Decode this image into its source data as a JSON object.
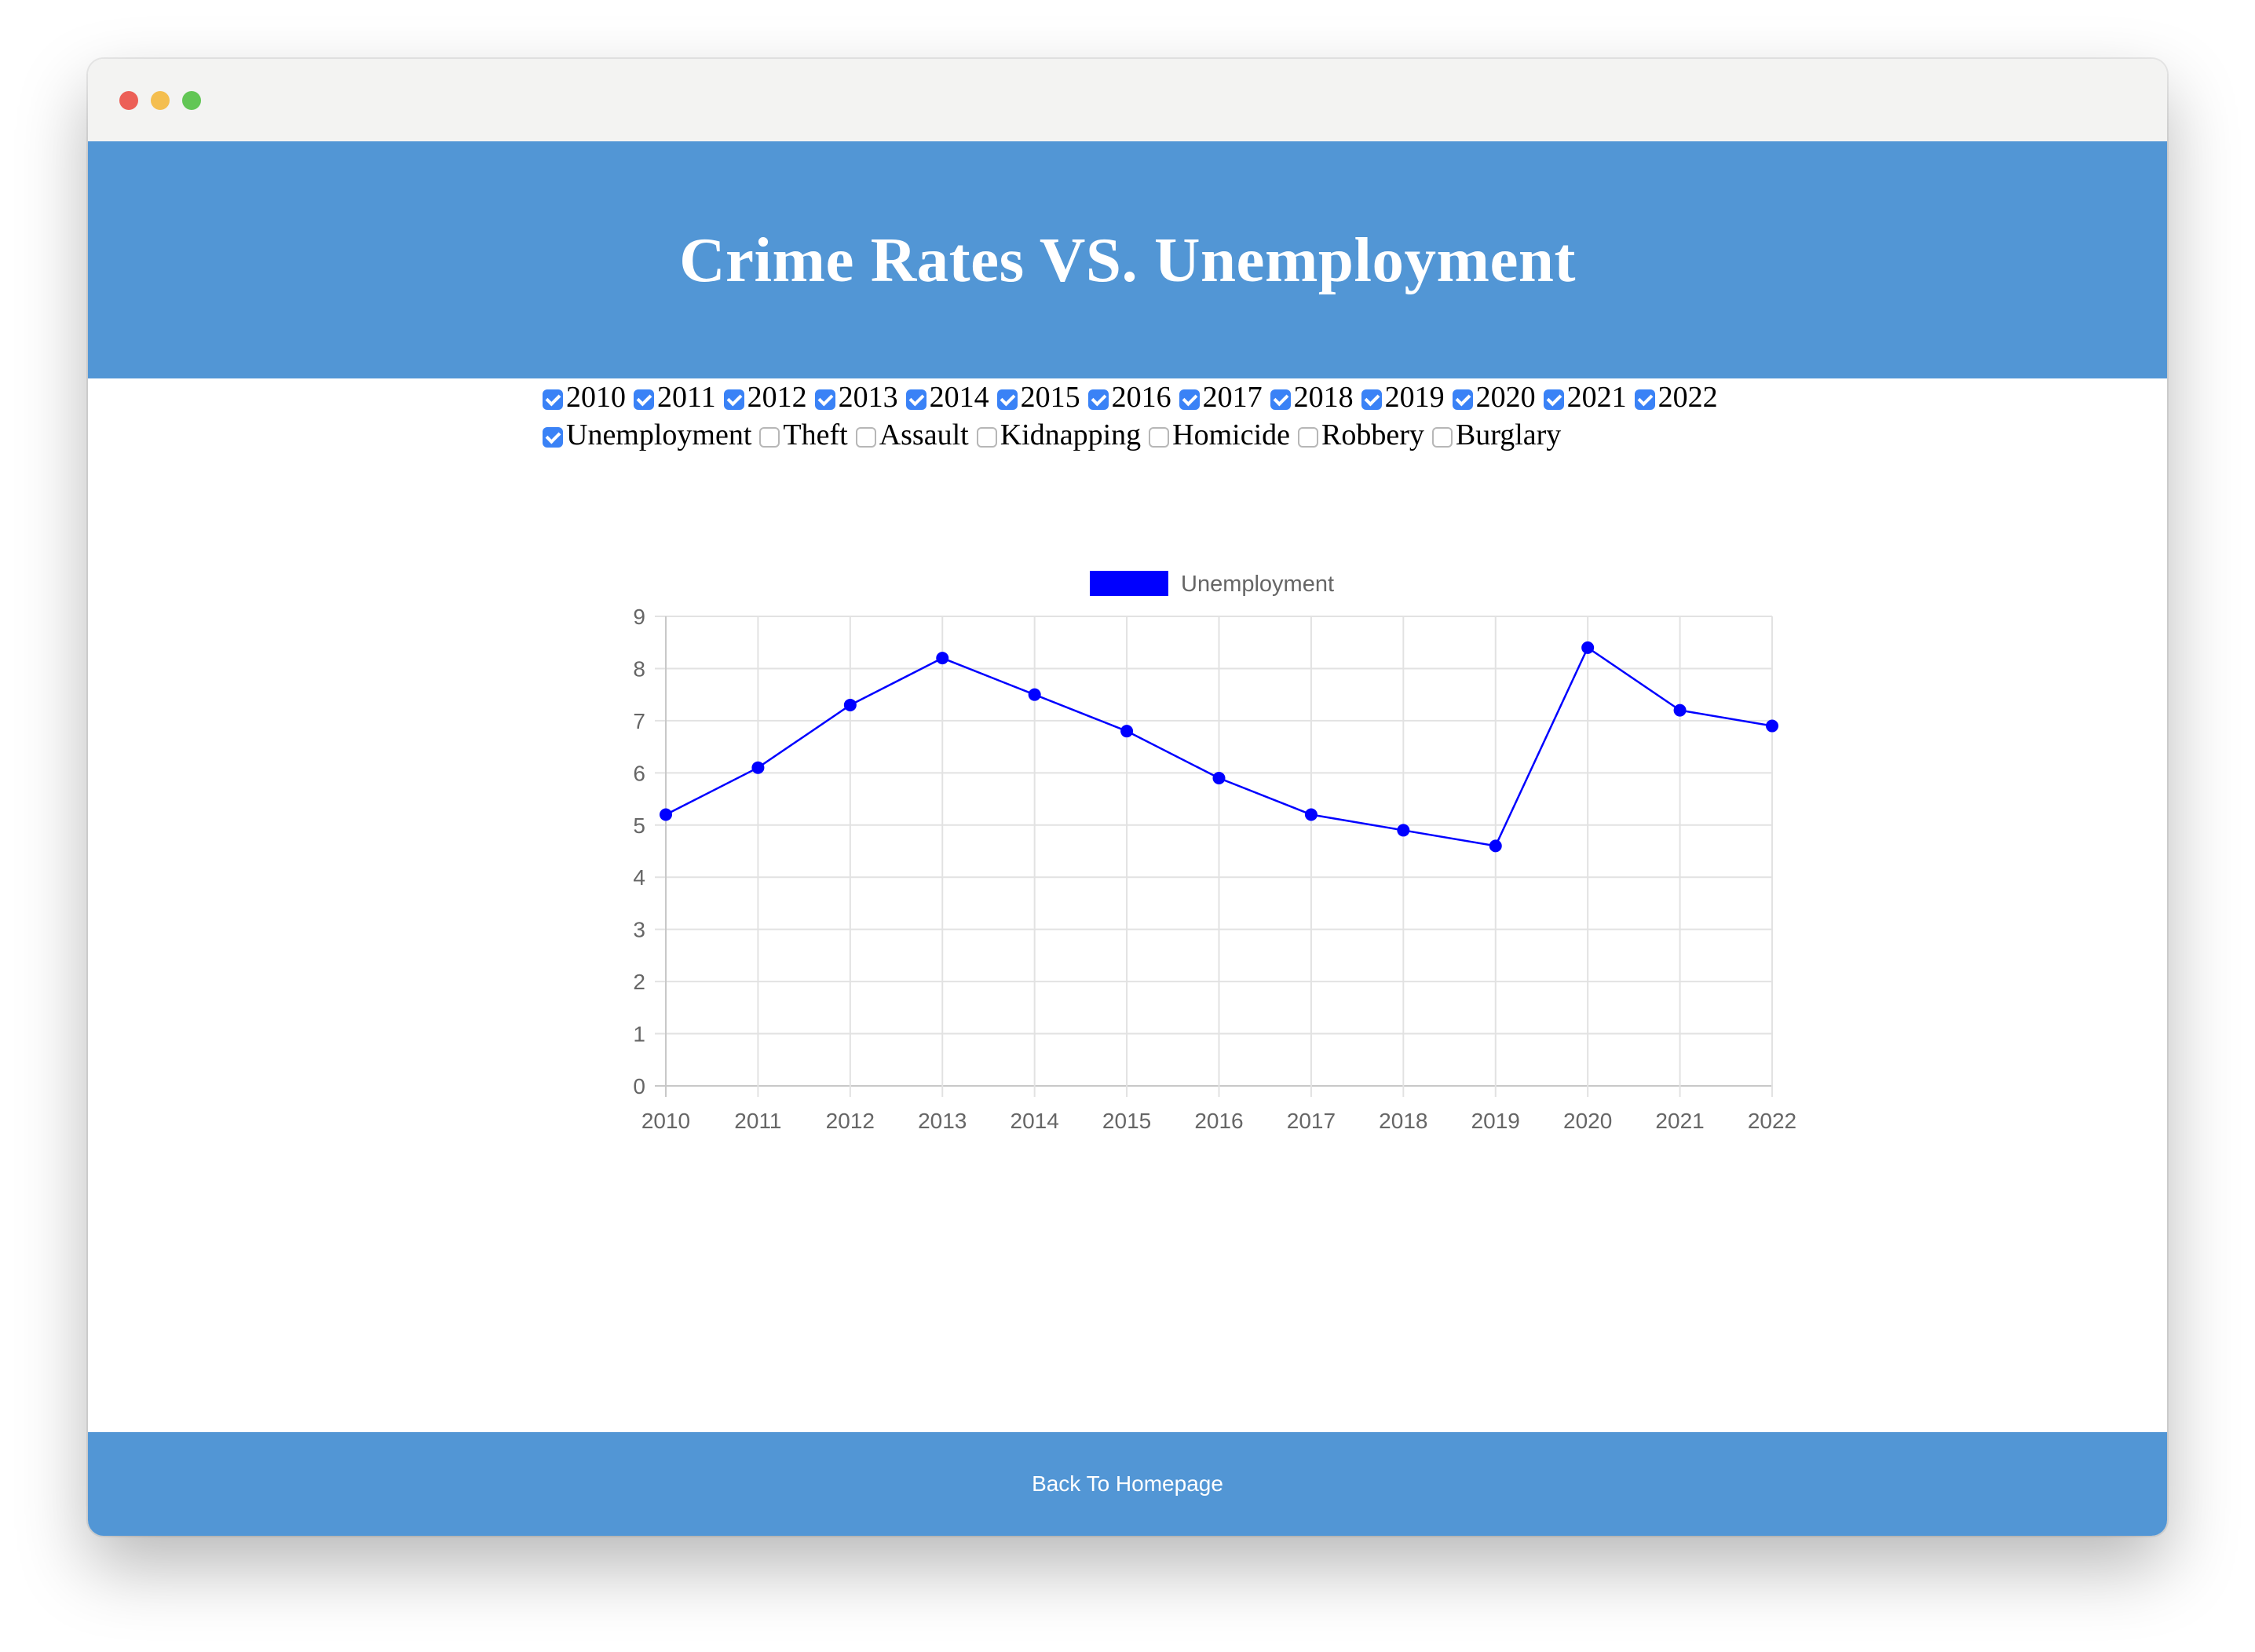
{
  "page": {
    "title": "Crime Rates VS. Unemployment"
  },
  "year_filters": [
    {
      "label": "2010",
      "checked": true
    },
    {
      "label": "2011",
      "checked": true
    },
    {
      "label": "2012",
      "checked": true
    },
    {
      "label": "2013",
      "checked": true
    },
    {
      "label": "2014",
      "checked": true
    },
    {
      "label": "2015",
      "checked": true
    },
    {
      "label": "2016",
      "checked": true
    },
    {
      "label": "2017",
      "checked": true
    },
    {
      "label": "2018",
      "checked": true
    },
    {
      "label": "2019",
      "checked": true
    },
    {
      "label": "2020",
      "checked": true
    },
    {
      "label": "2021",
      "checked": true
    },
    {
      "label": "2022",
      "checked": true
    }
  ],
  "category_filters": [
    {
      "label": "Unemployment",
      "checked": true
    },
    {
      "label": "Theft",
      "checked": false
    },
    {
      "label": "Assault",
      "checked": false
    },
    {
      "label": "Kidnapping",
      "checked": false
    },
    {
      "label": "Homicide",
      "checked": false
    },
    {
      "label": "Robbery",
      "checked": false
    },
    {
      "label": "Burglary",
      "checked": false
    }
  ],
  "chart_data": {
    "type": "line",
    "x": [
      "2010",
      "2011",
      "2012",
      "2013",
      "2014",
      "2015",
      "2016",
      "2017",
      "2018",
      "2019",
      "2020",
      "2021",
      "2022"
    ],
    "series": [
      {
        "name": "Unemployment",
        "color": "#0000ff",
        "values": [
          5.2,
          6.1,
          7.3,
          8.2,
          7.5,
          6.8,
          5.9,
          5.2,
          4.9,
          4.6,
          8.4,
          7.2,
          6.9
        ]
      }
    ],
    "ylim": [
      0,
      9
    ],
    "yticks": [
      "0",
      "1",
      "2",
      "3",
      "4",
      "5",
      "6",
      "7",
      "8",
      "9"
    ],
    "grid": true,
    "legend": "top-center"
  },
  "footer": {
    "link_label": "Back To Homepage"
  }
}
